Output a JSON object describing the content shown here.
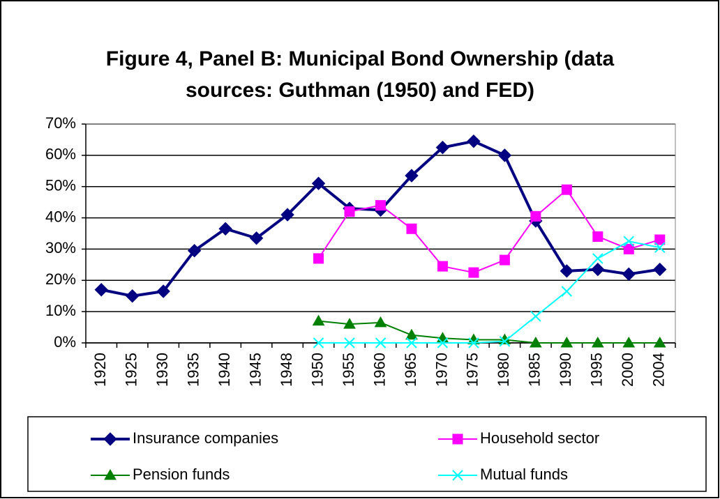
{
  "chart_data": {
    "type": "line",
    "title": [
      "Figure 4, Panel B: Municipal Bond Ownership (data",
      "sources: Guthman (1950) and FED)"
    ],
    "categories": [
      "1920",
      "1925",
      "1930",
      "1935",
      "1940",
      "1945",
      "1948",
      "1950",
      "1955",
      "1960",
      "1965",
      "1970",
      "1975",
      "1980",
      "1985",
      "1990",
      "1995",
      "2000",
      "2004"
    ],
    "series": [
      {
        "name": "Insurance companies",
        "color": "#000080",
        "marker": "diamond",
        "values": [
          17,
          15,
          16.5,
          29.5,
          36.5,
          33.5,
          41,
          51,
          43,
          42.5,
          53.5,
          62.5,
          64.5,
          60,
          39,
          23,
          23.5,
          22,
          23.5
        ]
      },
      {
        "name": "Household sector",
        "color": "#ff00ff",
        "marker": "square",
        "values": [
          null,
          null,
          null,
          null,
          null,
          null,
          null,
          27,
          42,
          44,
          36.5,
          24.5,
          22.5,
          26.5,
          40.5,
          49,
          34,
          30,
          33
        ]
      },
      {
        "name": "Pension funds",
        "color": "#008000",
        "marker": "triangle",
        "values": [
          null,
          null,
          null,
          null,
          null,
          null,
          null,
          7,
          6,
          6.5,
          2.5,
          1.5,
          1,
          1,
          0,
          0,
          0,
          0,
          0
        ]
      },
      {
        "name": "Mutual funds",
        "color": "#00ffff",
        "marker": "x",
        "values": [
          null,
          null,
          null,
          null,
          null,
          null,
          null,
          0,
          0,
          0,
          0,
          0,
          0,
          0.5,
          8.5,
          16.5,
          27,
          32.5,
          30.5
        ]
      }
    ],
    "ylim": [
      0,
      70
    ],
    "yticks": [
      {
        "value": 0,
        "label": "0%"
      },
      {
        "value": 10,
        "label": "10%"
      },
      {
        "value": 20,
        "label": "20%"
      },
      {
        "value": 30,
        "label": "30%"
      },
      {
        "value": 40,
        "label": "40%"
      },
      {
        "value": 50,
        "label": "50%"
      },
      {
        "value": 60,
        "label": "60%"
      },
      {
        "value": 70,
        "label": "70%"
      }
    ],
    "grid": true,
    "legend": "bottom"
  }
}
